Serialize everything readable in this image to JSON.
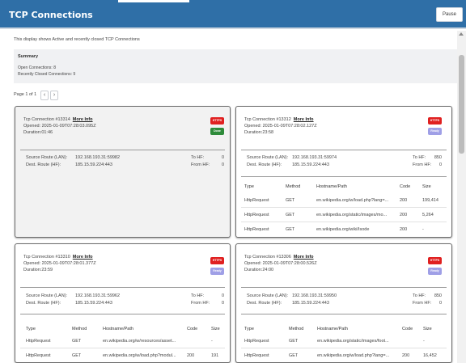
{
  "window": {
    "title": "TCP Connections",
    "pause_label": "Pause"
  },
  "intro": "This display shows Active and recently closed TCP Connections",
  "summary": {
    "title": "Summary",
    "open": "Open Connections: 8",
    "closed": "Recently Closed Connections: 9"
  },
  "pager": {
    "label": "Page 1 of 1",
    "prev": "‹",
    "next": "›"
  },
  "labels": {
    "more_info": "More Info",
    "source_route": "Source Route (LAN):",
    "dest_route": "Dest. Route (HF):",
    "to_hf": "To HF:",
    "from_hf": "From HF:"
  },
  "table_headers": [
    "Type",
    "Method",
    "Hostname/Path",
    "Code",
    "Size"
  ],
  "cards": [
    {
      "title": "Tcp Connection #13314",
      "opened": "Opened: 2025-01-09T07:28:03.095Z",
      "duration": "Duration:01:46",
      "protocol": "HTTPS",
      "status": "Done",
      "status_kind": "done",
      "source": "192.168.193.31:59982",
      "dest": "185.15.59.224:443",
      "to_hf": "0",
      "from_hf": "0",
      "rows": []
    },
    {
      "title": "Tcp Connection #13312",
      "opened": "Opened: 2025-01-09T07:28:02.127Z",
      "duration": "Duration:23:58",
      "protocol": "HTTPS",
      "status": "Ready",
      "status_kind": "ready",
      "source": "192.168.193.31:59974",
      "dest": "185.15.59.224:443",
      "to_hf": "850",
      "from_hf": "0",
      "rows": [
        [
          "HttpRequest",
          "GET",
          "en.wikipedia.org/w/load.php?lang=...",
          "200",
          "199,414"
        ],
        [
          "HttpRequest",
          "GET",
          "en.wikipedia.org/static/images/mo...",
          "200",
          "5,264"
        ],
        [
          "HttpRequest",
          "GET",
          "en.wikipedia.org/wiki/Isode",
          "200",
          "-"
        ]
      ]
    },
    {
      "title": "Tcp Connection #13310",
      "opened": "Opened: 2025-01-09T07:28:01.377Z",
      "duration": "Duration:23:59",
      "protocol": "HTTPS",
      "status": "Ready",
      "status_kind": "ready",
      "source": "192.168.193.31:59962",
      "dest": "185.15.59.224:443",
      "to_hf": "0",
      "from_hf": "0",
      "rows": [
        [
          "HttpRequest",
          "GET",
          "en.wikipedia.org/w/resources/asset...",
          "",
          "-"
        ],
        [
          "HttpRequest",
          "GET",
          "en.wikipedia.org/w/load.php?modul...",
          "200",
          "191"
        ]
      ]
    },
    {
      "title": "Tcp Connection #13306",
      "opened": "Opened: 2025-01-09T07:28:00.526Z",
      "duration": "Duration:24:00",
      "protocol": "HTTPS",
      "status": "Ready",
      "status_kind": "ready",
      "source": "192.168.193.31:59950",
      "dest": "185.15.59.224:443",
      "to_hf": "850",
      "from_hf": "0",
      "rows": [
        [
          "HttpRequest",
          "GET",
          "en.wikipedia.org/static/images/foot...",
          "",
          "-"
        ],
        [
          "HttpRequest",
          "GET",
          "en.wikipedia.org/w/load.php?lang=...",
          "200",
          "16,452"
        ]
      ]
    }
  ]
}
